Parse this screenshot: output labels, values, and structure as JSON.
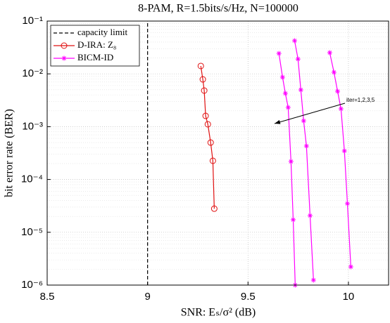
{
  "chart_data": {
    "type": "line",
    "title": "8-PAM, R=1.5bits/s/Hz, N=100000",
    "xlabel": "SNR: Eₛ/σ² (dB)",
    "ylabel": "bit error rate (BER)",
    "annotation": "iter=1,2,3,5",
    "log_y": true,
    "grid": true,
    "legend_position": "upper left",
    "xlim": [
      8.5,
      10.2
    ],
    "xticks": [
      8.5,
      9,
      9.5,
      10
    ],
    "ylim": [
      1e-06,
      0.1
    ],
    "yticks": [
      {
        "value": 1e-06,
        "label": "10⁻⁶"
      },
      {
        "value": 1e-05,
        "label": "10⁻⁵"
      },
      {
        "value": 0.0001,
        "label": "10⁻⁴"
      },
      {
        "value": 0.001,
        "label": "10⁻³"
      },
      {
        "value": 0.01,
        "label": "10⁻²"
      },
      {
        "value": 0.1,
        "label": "10⁻¹"
      }
    ],
    "series": [
      {
        "name": "capacity limit",
        "color": "#000000",
        "line_style": "dashed",
        "marker": "none",
        "x": [
          9,
          9
        ],
        "values": [
          1e-06,
          0.1
        ]
      },
      {
        "name": "D-IRA: Z₈",
        "color": "#e01010",
        "line_style": "solid",
        "marker": "circle",
        "x": [
          9.265,
          9.275,
          9.282,
          9.289,
          9.3,
          9.314,
          9.325,
          9.332
        ],
        "values": [
          0.0141,
          0.00787,
          0.00483,
          0.0016,
          0.00111,
          0.0005,
          0.000226,
          2.8e-05
        ]
      },
      {
        "name": "BICM-ID",
        "color": "#ff00ff",
        "line_style": "solid",
        "marker": "asterisk",
        "x": [
          9.654,
          9.672,
          9.686,
          9.7,
          9.714,
          9.725,
          9.735,
          null,
          9.732,
          9.749,
          9.763,
          9.777,
          9.791,
          9.809,
          9.826,
          null,
          9.907,
          9.928,
          9.946,
          9.963,
          9.98,
          9.995,
          10.012
        ],
        "values": [
          0.0244,
          0.00863,
          0.00427,
          0.00231,
          0.000219,
          1.73e-05,
          1e-06,
          null,
          0.0425,
          0.0191,
          0.00498,
          0.00129,
          0.00043,
          2.07e-05,
          1.24e-06,
          null,
          0.0252,
          0.0107,
          0.00468,
          0.00218,
          0.000347,
          3.49e-05,
          2.22e-06
        ]
      }
    ]
  }
}
